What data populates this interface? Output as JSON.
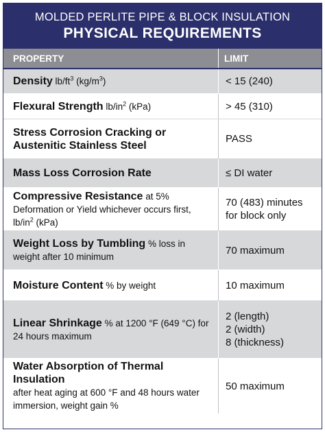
{
  "title": {
    "line1": "MOLDED PERLITE PIPE & BLOCK INSULATION",
    "line2": "PHYSICAL REQUIREMENTS"
  },
  "header": {
    "property": "PROPERTY",
    "limit": "LIMIT"
  },
  "rows": [
    {
      "name": "Density",
      "d1": " lb/ft",
      "sup1": "3",
      "d2": " (kg/m",
      "sup2": "3",
      "d3": ")",
      "limit": [
        "< 15 (240)"
      ]
    },
    {
      "name": "Flexural Strength",
      "d1": " lb/in",
      "sup1": "2",
      "d2": " (kPa)",
      "limit": [
        "> 45 (310)"
      ]
    },
    {
      "name": "Stress Corrosion Cracking or Austenitic Stainless Steel",
      "limit": [
        "PASS"
      ]
    },
    {
      "name": "Mass Loss Corrosion Rate",
      "limit": [
        "≤ DI water"
      ]
    },
    {
      "name": "Compressive Resistance",
      "d1": " at 5% Deformation or Yield whichever occurs first, lb/in",
      "sup1": "2",
      "d2": " (kPa)",
      "limit": [
        "70 (483) minutes",
        "for block only"
      ]
    },
    {
      "name": "Weight Loss by Tumbling",
      "d1": " % loss in weight after 10 minimum",
      "limit": [
        "70 maximum"
      ]
    },
    {
      "name": "Moisture Content",
      "d1": " % by weight",
      "limit": [
        "10 maximum"
      ]
    },
    {
      "name": "Linear Shrinkage",
      "d1": " % at 1200 °F (649 °C) for 24 hours maximum",
      "limit": [
        "2 (length)",
        "2 (width)",
        "8 (thickness)"
      ]
    },
    {
      "name": "Water Absorption of Thermal Insulation",
      "d1": "after heat aging at 600 °F and 48 hours water immersion, weight gain %",
      "limit": [
        "50 maximum"
      ]
    }
  ]
}
